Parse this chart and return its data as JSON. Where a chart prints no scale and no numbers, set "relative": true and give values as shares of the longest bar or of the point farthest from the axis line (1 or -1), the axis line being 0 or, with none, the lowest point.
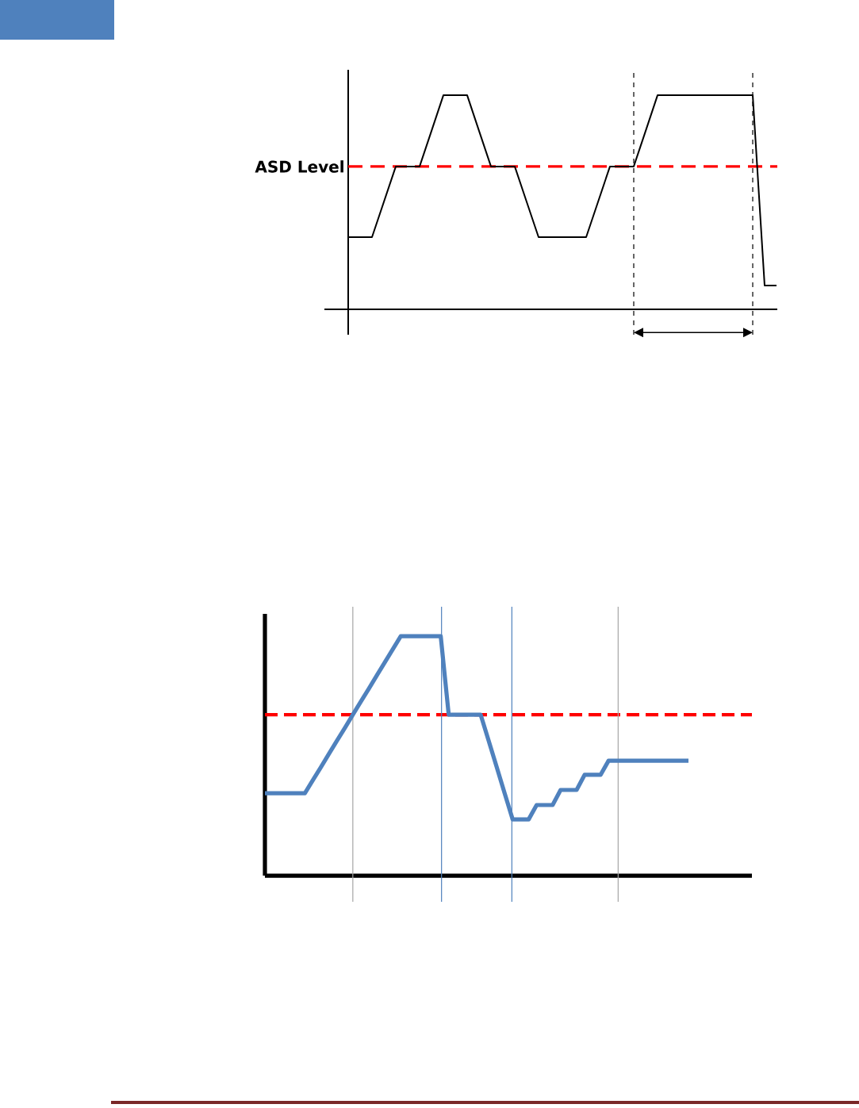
{
  "chart_data": [
    {
      "type": "line",
      "relative": true,
      "tick_labels": false,
      "categories": [
        null,
        null,
        null,
        null,
        null,
        null,
        null,
        null,
        null,
        null,
        null,
        null,
        null,
        null,
        null,
        null,
        null,
        null,
        null,
        null,
        null,
        null,
        null,
        null,
        null,
        null,
        null,
        null,
        null,
        null,
        null,
        null,
        null,
        null,
        null,
        null,
        null
      ],
      "series": [
        {
          "color": "#000000",
          "values": [
            0.337,
            0.337,
            0.337,
            0.502,
            0.667,
            0.667,
            0.667,
            0.833,
            1,
            1,
            1,
            0.833,
            0.667,
            0.667,
            0.667,
            0.502,
            0.337,
            0.337,
            0.337,
            0.337,
            0.337,
            0.502,
            0.667,
            0.667,
            0.667,
            0.833,
            1,
            1,
            1,
            1,
            1,
            1,
            1,
            1,
            1,
            0.111,
            0.111
          ]
        }
      ],
      "ref_lines": [
        {
          "axis": "y",
          "value": 0.667,
          "label": "ASD Level",
          "color": "#ff0000",
          "line_style": "dashed"
        }
      ]
    },
    {
      "type": "line",
      "relative": true,
      "tick_labels": false,
      "grid": "x",
      "categories": [
        null,
        null,
        null,
        null,
        null,
        null,
        null,
        null,
        null,
        null,
        null,
        null,
        null,
        null,
        null,
        null,
        null,
        null,
        null,
        null,
        null,
        null,
        null,
        null,
        null,
        null,
        null,
        null,
        null,
        null,
        null,
        null,
        null,
        null,
        null,
        null,
        null,
        null,
        null,
        null,
        null,
        null,
        null,
        null,
        null,
        null,
        null,
        null,
        null,
        null,
        null,
        null,
        null,
        null
      ],
      "series": [
        {
          "color": "#4f81bd",
          "values": [
            0.344,
            0.344,
            0.344,
            0.344,
            0.344,
            0.344,
            0.399,
            0.453,
            0.508,
            0.563,
            0.617,
            0.672,
            0.727,
            0.781,
            0.836,
            0.891,
            0.945,
            1,
            1,
            1,
            1,
            1,
            1,
            0.672,
            0.672,
            0.672,
            0.672,
            0.672,
            0.563,
            0.454,
            0.344,
            0.235,
            0.235,
            0.235,
            0.295,
            0.295,
            0.295,
            0.358,
            0.358,
            0.358,
            0.421,
            0.421,
            0.421,
            0.48,
            0.48,
            0.48,
            0.48,
            0.48,
            0.48,
            0.48,
            0.48,
            0.48,
            0.48,
            0.48
          ]
        }
      ],
      "ref_lines": [
        {
          "axis": "y",
          "value": 0.672,
          "color": "#ff0000",
          "line_style": "dashed"
        }
      ]
    }
  ]
}
